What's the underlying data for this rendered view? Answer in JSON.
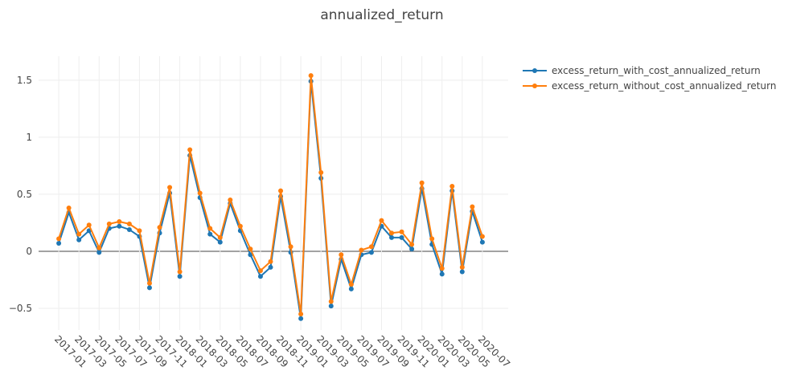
{
  "chart_data": {
    "type": "line",
    "title": "annualized_return",
    "x": [
      "2017-01",
      "2017-02",
      "2017-03",
      "2017-04",
      "2017-05",
      "2017-06",
      "2017-07",
      "2017-08",
      "2017-09",
      "2017-10",
      "2017-11",
      "2017-12",
      "2018-01",
      "2018-02",
      "2018-03",
      "2018-04",
      "2018-05",
      "2018-06",
      "2018-07",
      "2018-08",
      "2018-09",
      "2018-10",
      "2018-11",
      "2018-12",
      "2019-01",
      "2019-02",
      "2019-03",
      "2019-04",
      "2019-05",
      "2019-06",
      "2019-07",
      "2019-08",
      "2019-09",
      "2019-10",
      "2019-11",
      "2019-12",
      "2020-01",
      "2020-02",
      "2020-03",
      "2020-04",
      "2020-05",
      "2020-06",
      "2020-07"
    ],
    "series": [
      {
        "name": "excess_return_with_cost_annualized_return",
        "color": "#1f77b4",
        "values": [
          0.07,
          0.34,
          0.1,
          0.18,
          -0.01,
          0.2,
          0.22,
          0.19,
          0.13,
          -0.32,
          0.16,
          0.51,
          -0.22,
          0.84,
          0.47,
          0.15,
          0.08,
          0.42,
          0.18,
          -0.03,
          -0.22,
          -0.14,
          0.48,
          -0.01,
          -0.59,
          1.49,
          0.64,
          -0.48,
          -0.07,
          -0.33,
          -0.03,
          -0.01,
          0.22,
          0.12,
          0.12,
          0.02,
          0.55,
          0.06,
          -0.2,
          0.53,
          -0.18,
          0.35,
          0.08
        ]
      },
      {
        "name": "excess_return_without_cost_annualized_return",
        "color": "#ff7f0e",
        "values": [
          0.11,
          0.38,
          0.15,
          0.23,
          0.03,
          0.24,
          0.26,
          0.24,
          0.18,
          -0.28,
          0.21,
          0.56,
          -0.18,
          0.89,
          0.51,
          0.2,
          0.12,
          0.45,
          0.22,
          0.02,
          -0.17,
          -0.09,
          0.53,
          0.04,
          -0.55,
          1.54,
          0.69,
          -0.44,
          -0.03,
          -0.29,
          0.01,
          0.04,
          0.27,
          0.16,
          0.17,
          0.06,
          0.6,
          0.11,
          -0.15,
          0.57,
          -0.14,
          0.39,
          0.13
        ]
      }
    ],
    "xlim": [
      "2016-11",
      "2020-09"
    ],
    "xticks": [
      "2017-01",
      "2017-03",
      "2017-05",
      "2017-07",
      "2017-09",
      "2017-11",
      "2018-01",
      "2018-03",
      "2018-05",
      "2018-07",
      "2018-09",
      "2018-11",
      "2019-01",
      "2019-03",
      "2019-05",
      "2019-07",
      "2019-09",
      "2019-11",
      "2020-01",
      "2020-03",
      "2020-05",
      "2020-07"
    ],
    "ylim": [
      -0.69,
      1.71
    ],
    "yticks": [
      {
        "value": -0.5,
        "label": "−0.5"
      },
      0,
      0.5,
      1,
      1.5
    ],
    "grid": true,
    "legend": "top-right"
  }
}
